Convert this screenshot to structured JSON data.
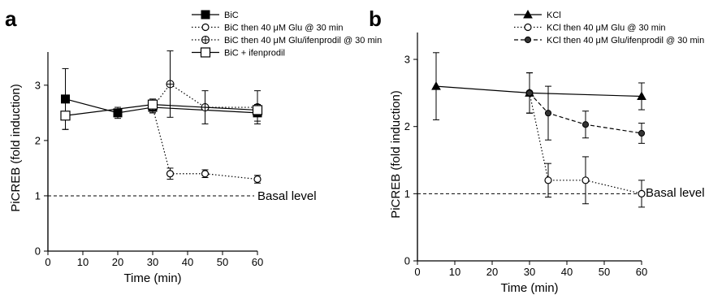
{
  "chart_data": [
    {
      "panel": "a",
      "type": "line",
      "xlabel": "Time (min)",
      "ylabel": "PiCREB (fold induction)",
      "xlim": [
        0,
        60
      ],
      "ylim": [
        0,
        3.6
      ],
      "xticks": [
        0,
        10,
        20,
        30,
        40,
        50,
        60
      ],
      "yticks": [
        0,
        1,
        2,
        3
      ],
      "legend_position": "top-right",
      "reference_line": {
        "y": 1,
        "label": "Basal level",
        "style": "dashed"
      },
      "series": [
        {
          "name": "BiC",
          "marker": "square-filled",
          "line": "solid",
          "x": [
            5,
            20,
            30,
            60
          ],
          "y": [
            2.75,
            2.5,
            2.6,
            2.5
          ],
          "err": [
            0.55,
            0.1,
            0.1,
            0.15
          ]
        },
        {
          "name": "BiC then 40 μM Glu @ 30 min",
          "marker": "circle-open",
          "line": "dotted",
          "x": [
            30,
            35,
            45,
            60
          ],
          "y": [
            2.6,
            1.4,
            1.4,
            1.3
          ],
          "err": [
            0.1,
            0.1,
            0.07,
            0.07
          ]
        },
        {
          "name": "BiC then 40 μM Glu/ifenprodil @ 30 min",
          "marker": "circle-cross",
          "line": "dotted",
          "x": [
            30,
            35,
            45,
            60
          ],
          "y": [
            2.6,
            3.02,
            2.6,
            2.6
          ],
          "err": [
            0.1,
            0.6,
            0.3,
            0.3
          ]
        },
        {
          "name": "BiC + ifenprodil",
          "marker": "square-open",
          "line": "solid",
          "x": [
            5,
            30,
            60
          ],
          "y": [
            2.45,
            2.65,
            2.55
          ],
          "err": [
            0.25,
            0.1,
            0.1
          ]
        }
      ]
    },
    {
      "panel": "b",
      "type": "line",
      "xlabel": "Time (min)",
      "ylabel": "PiCREB (fold induction)",
      "xlim": [
        0,
        60
      ],
      "ylim": [
        0,
        3.4
      ],
      "xticks": [
        0,
        10,
        20,
        30,
        40,
        50,
        60
      ],
      "yticks": [
        0,
        1,
        2,
        3
      ],
      "legend_position": "top-right",
      "reference_line": {
        "y": 1,
        "label": "Basal level",
        "style": "dashed"
      },
      "series": [
        {
          "name": "KCl",
          "marker": "triangle-filled",
          "line": "solid",
          "x": [
            5,
            30,
            60
          ],
          "y": [
            2.6,
            2.5,
            2.45
          ],
          "err": [
            0.5,
            0.3,
            0.2
          ]
        },
        {
          "name": "KCl then 40 μM Glu @ 30 min",
          "marker": "circle-open",
          "line": "dotted",
          "x": [
            30,
            35,
            45,
            60
          ],
          "y": [
            2.5,
            1.2,
            1.2,
            1.0
          ],
          "err": [
            0.3,
            0.25,
            0.35,
            0.2
          ]
        },
        {
          "name": "KCl then 40 μM Glu/ifenprodil @ 30 min",
          "marker": "circle-filled",
          "line": "dashed",
          "x": [
            30,
            35,
            45,
            60
          ],
          "y": [
            2.5,
            2.2,
            2.03,
            1.9
          ],
          "err": [
            0.3,
            0.4,
            0.2,
            0.15
          ]
        }
      ]
    }
  ]
}
